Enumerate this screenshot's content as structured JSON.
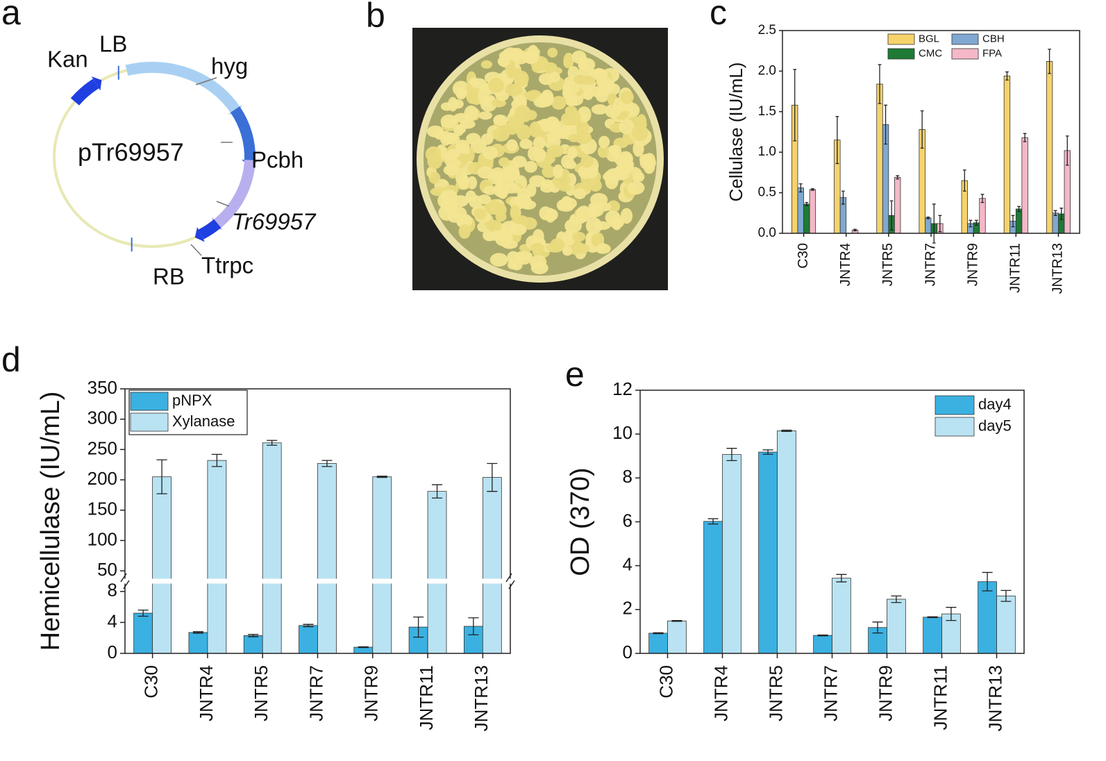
{
  "panel_labels": [
    "a",
    "b",
    "c",
    "d",
    "e"
  ],
  "plasmid": {
    "name": "pTr69957",
    "labels": [
      "Kan",
      "LB",
      "hyg",
      "Pcbh",
      "Tr69957",
      "Ttrpc",
      "RB"
    ]
  },
  "chart_data": [
    {
      "type": "bar",
      "ylabel": "Cellulase (IU/mL)",
      "categories": [
        "C30",
        "JNTR4",
        "JNTR5",
        "JNTR7",
        "JNTR9",
        "JNTR11",
        "JNTR13"
      ],
      "series": [
        {
          "name": "BGL",
          "color": "#f6d36b",
          "values": [
            1.58,
            1.15,
            1.84,
            1.28,
            0.65,
            1.94,
            2.12
          ],
          "errors": [
            0.44,
            0.29,
            0.24,
            0.23,
            0.13,
            0.05,
            0.15
          ]
        },
        {
          "name": "CBH",
          "color": "#7fa8d2",
          "values": [
            0.56,
            0.44,
            1.34,
            0.19,
            0.12,
            0.15,
            0.25
          ],
          "errors": [
            0.05,
            0.08,
            0.24,
            0.01,
            0.04,
            0.07,
            0.03
          ]
        },
        {
          "name": "CMC",
          "color": "#1f7a35",
          "values": [
            0.36,
            0,
            0.22,
            0.12,
            0.13,
            0.3,
            0.24
          ],
          "errors": [
            0.02,
            0,
            0.18,
            0.24,
            0.03,
            0.03,
            0.07
          ]
        },
        {
          "name": "FPA",
          "color": "#f4b8c8",
          "values": [
            0.54,
            0.04,
            0.69,
            0.12,
            0.43,
            1.18,
            1.02
          ],
          "errors": [
            0.01,
            0.01,
            0.02,
            0.1,
            0.05,
            0.05,
            0.18
          ]
        }
      ],
      "ylim": [
        0,
        2.5
      ],
      "yticks": [
        {
          "value": 0,
          "label": "0.0"
        },
        0.5,
        {
          "value": 1,
          "label": "1.0"
        },
        1.5,
        {
          "value": 2,
          "label": "2.0"
        },
        2.5
      ],
      "legend": "upper center",
      "legend_columns": 2
    },
    {
      "type": "bar",
      "ylabel": "Hemicellulase (IU/mL)",
      "categories": [
        "C30",
        "JNTR4",
        "JNTR5",
        "JNTR7",
        "JNTR9",
        "JNTR11",
        "JNTR13"
      ],
      "series": [
        {
          "name": "pNPX",
          "color": "#3bb1e1",
          "values": [
            5.2,
            2.7,
            2.3,
            3.6,
            0.8,
            3.4,
            3.5
          ],
          "errors": [
            0.4,
            0.1,
            0.15,
            0.15,
            0.05,
            1.3,
            1.1
          ]
        },
        {
          "name": "Xylanase",
          "color": "#b9e3f2",
          "values": [
            205,
            232,
            261,
            227,
            205,
            181,
            204
          ],
          "errors": [
            28,
            10,
            4,
            5,
            1,
            11,
            23
          ]
        }
      ],
      "ylim": [
        0,
        350
      ],
      "ybreak": [
        8,
        50
      ],
      "yticks": [
        0,
        4,
        8,
        50,
        100,
        150,
        200,
        250,
        300,
        350
      ],
      "legend": "upper left",
      "legend_columns": 1
    },
    {
      "type": "bar",
      "ylabel": "OD (370)",
      "categories": [
        "C30",
        "JNTR4",
        "JNTR5",
        "JNTR7",
        "JNTR9",
        "JNTR11",
        "JNTR13"
      ],
      "series": [
        {
          "name": "day4",
          "color": "#3bb1e1",
          "values": [
            0.92,
            6.02,
            9.18,
            0.82,
            1.18,
            1.65,
            3.27
          ],
          "errors": [
            0.02,
            0.12,
            0.1,
            0.02,
            0.25,
            0.02,
            0.42
          ]
        },
        {
          "name": "day5",
          "color": "#b9e3f2",
          "values": [
            1.48,
            9.07,
            10.15,
            3.43,
            2.47,
            1.8,
            2.62
          ],
          "errors": [
            0.02,
            0.28,
            0.03,
            0.17,
            0.15,
            0.3,
            0.25
          ]
        }
      ],
      "ylim": [
        0,
        12
      ],
      "yticks": [
        0,
        2,
        4,
        6,
        8,
        10,
        12
      ],
      "legend": "upper right",
      "legend_columns": 1
    }
  ]
}
